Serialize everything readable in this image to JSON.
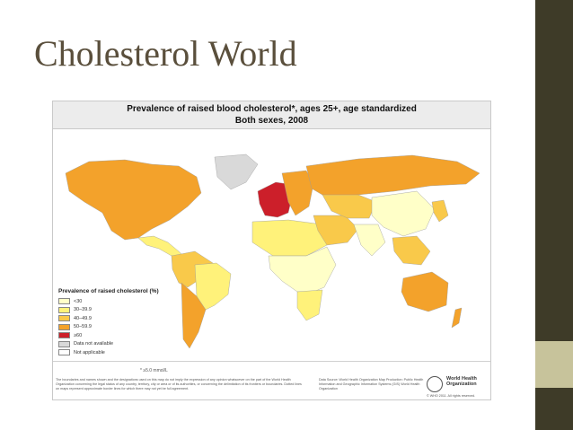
{
  "slide": {
    "title": "Cholesterol World",
    "colors": {
      "title": "#5a4f3c",
      "band_dark": "#3e3b28",
      "band_light": "#c7c39b"
    }
  },
  "figure": {
    "title": "Prevalence of raised blood cholesterol*, ages 25+, age standardized",
    "subtitle": "Both sexes, 2008",
    "legend": {
      "title": "Prevalence of raised cholesterol (%)",
      "items": [
        {
          "label": "<30",
          "color": "#ffffc8"
        },
        {
          "label": "30–39.9",
          "color": "#fff27a"
        },
        {
          "label": "40–49.9",
          "color": "#f9c94a"
        },
        {
          "label": "50–59.9",
          "color": "#f3a22b"
        },
        {
          "label": "≥60",
          "color": "#cc1f2a"
        },
        {
          "label": "Data not available",
          "color": "#d9d9d9"
        },
        {
          "label": "Not applicable",
          "color": "#ffffff"
        }
      ]
    },
    "footnote": "* ≥5.0 mmol/L",
    "disclaimer": "The boundaries and names shown and the designations used on this map do not imply the expression of any opinion whatsoever on the part of the World Health Organization concerning the legal status of any country, territory, city or area or of its authorities, or concerning the delimitation of its frontiers or boundaries. Dotted lines on maps represent approximate border lines for which there may not yet be full agreement.",
    "source": "Data Source: World Health Organization Map Production: Public Health Information and Geographic Information Systems (GIS) World Health Organization",
    "org": "World Health Organization",
    "copyright": "© WHO 2011. All rights reserved.",
    "map_regions": {
      "north_america": "#f3a22b",
      "greenland": "#d9d9d9",
      "central_america": "#fff27a",
      "south_america_north": "#f9c94a",
      "brazil": "#fff27a",
      "argentina": "#f3a22b",
      "west_europe": "#cc1f2a",
      "east_europe": "#f3a22b",
      "russia": "#f3a22b",
      "north_africa": "#fff27a",
      "subsaharan_africa": "#ffffc8",
      "southern_africa": "#fff27a",
      "middle_east": "#f9c94a",
      "central_asia": "#f9c94a",
      "south_asia": "#ffffc8",
      "china": "#ffffc8",
      "japan_korea": "#f9c94a",
      "southeast_asia": "#f9c94a",
      "australia": "#f3a22b",
      "new_zealand": "#f3a22b"
    }
  }
}
